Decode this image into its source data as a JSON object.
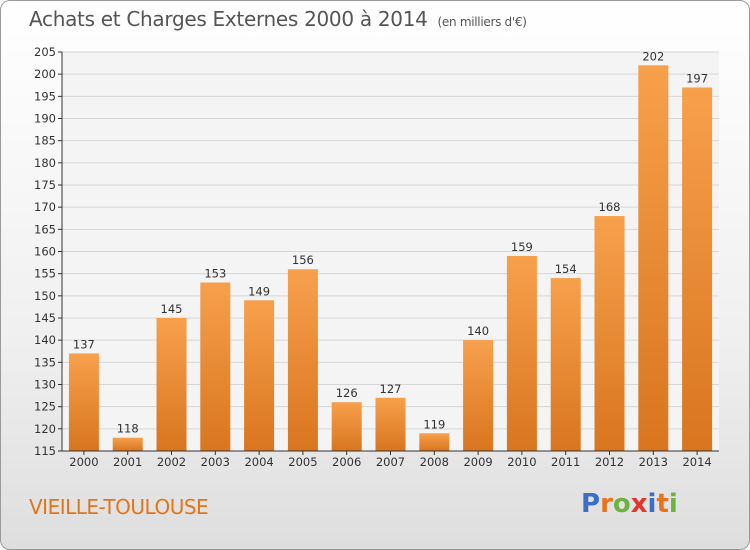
{
  "title": "Achats et Charges Externes 2000 à 2014",
  "subtitle": "(en milliers d'€)",
  "town": "VIEILLE-TOULOUSE",
  "logo": {
    "text": "Proxiti",
    "letter_colors": [
      "#3b6fc5",
      "#e8731a",
      "#6cb33f",
      "#e2342b",
      "#3b6fc5",
      "#e8731a",
      "#6cb33f"
    ]
  },
  "colors": {
    "bar_light": "#f7a04c",
    "bar_dark": "#d9751f",
    "grid": "#d6d6d6",
    "axis": "#333333"
  },
  "chart_data": {
    "type": "bar",
    "title": "Achats et Charges Externes 2000 à 2014",
    "subtitle": "(en milliers d'€)",
    "categories": [
      "2000",
      "2001",
      "2002",
      "2003",
      "2004",
      "2005",
      "2006",
      "2007",
      "2008",
      "2009",
      "2010",
      "2011",
      "2012",
      "2013",
      "2014"
    ],
    "values": [
      137,
      118,
      145,
      153,
      149,
      156,
      126,
      127,
      119,
      140,
      159,
      154,
      168,
      202,
      197
    ],
    "ylim": [
      115,
      205
    ],
    "yticks": [
      115,
      120,
      125,
      130,
      135,
      140,
      145,
      150,
      155,
      160,
      165,
      170,
      175,
      180,
      185,
      190,
      195,
      200,
      205
    ],
    "grid": true
  }
}
